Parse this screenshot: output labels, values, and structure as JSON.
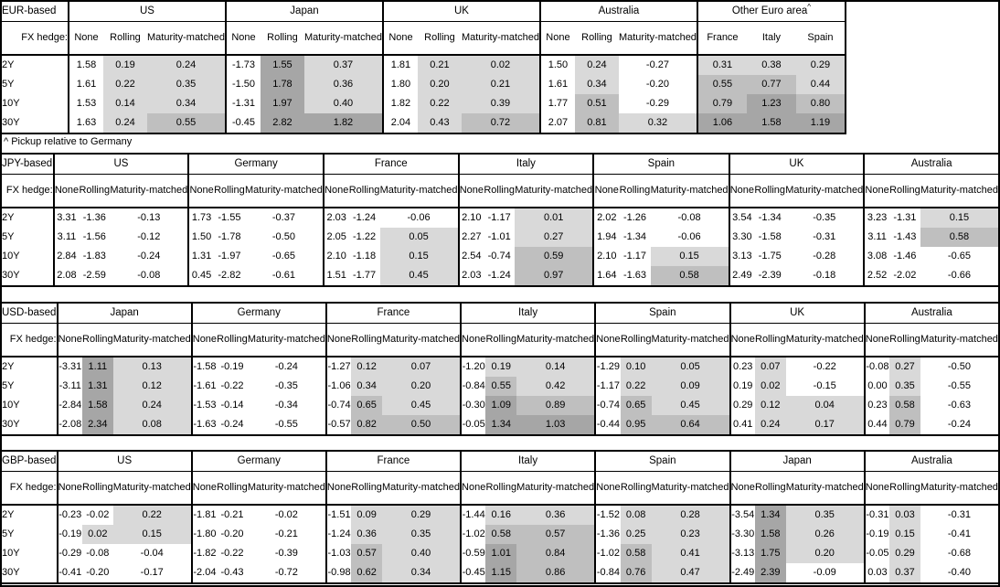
{
  "figure": {
    "footnote": "^ Pickup relative to Germany"
  },
  "columns": {
    "fx_hedge_label": "FX hedge:",
    "hedges": [
      "None",
      "Rolling",
      "Maturity-matched"
    ]
  },
  "tenors": [
    "2Y",
    "5Y",
    "10Y",
    "30Y"
  ],
  "colors": {
    "shade_light": "#d9d9d9",
    "shade_medium": "#bfbfbf",
    "shade_dark": "#a6a6a6",
    "border": "#000000",
    "background": "#ffffff"
  },
  "shading_rule": {
    "applies_to": "Rolling and Maturity-matched columns, and all Other-Euro-area spread columns",
    "white": "value < 0",
    "light": "0 <= value < 0.5",
    "medium": "0.5 <= value < 1.0",
    "dark": "value >= 1.0"
  },
  "tables": [
    {
      "base": "EUR-based",
      "groups": [
        {
          "country": "US",
          "rows": [
            [
              "1.58",
              "0.19",
              "0.24"
            ],
            [
              "1.61",
              "0.22",
              "0.35"
            ],
            [
              "1.53",
              "0.14",
              "0.34"
            ],
            [
              "1.63",
              "0.24",
              "0.55"
            ]
          ]
        },
        {
          "country": "Japan",
          "rows": [
            [
              "-1.73",
              "1.55",
              "0.37"
            ],
            [
              "-1.50",
              "1.78",
              "0.36"
            ],
            [
              "-1.31",
              "1.97",
              "0.40"
            ],
            [
              "-0.45",
              "2.82",
              "1.82"
            ]
          ]
        },
        {
          "country": "UK",
          "rows": [
            [
              "1.81",
              "0.21",
              "0.02"
            ],
            [
              "1.80",
              "0.20",
              "0.21"
            ],
            [
              "1.82",
              "0.22",
              "0.39"
            ],
            [
              "2.04",
              "0.43",
              "0.72"
            ]
          ]
        },
        {
          "country": "Australia",
          "rows": [
            [
              "1.50",
              "0.24",
              "-0.27"
            ],
            [
              "1.61",
              "0.34",
              "-0.20"
            ],
            [
              "1.77",
              "0.51",
              "-0.29"
            ],
            [
              "2.07",
              "0.81",
              "0.32"
            ]
          ]
        },
        {
          "country": "Other Euro area",
          "superscript": "^",
          "sub_columns": [
            "France",
            "Italy",
            "Spain"
          ],
          "rows": [
            [
              "0.31",
              "0.38",
              "0.29"
            ],
            [
              "0.55",
              "0.77",
              "0.44"
            ],
            [
              "0.79",
              "1.23",
              "0.80"
            ],
            [
              "1.06",
              "1.58",
              "1.19"
            ]
          ]
        }
      ]
    },
    {
      "base": "JPY-based",
      "groups": [
        {
          "country": "US",
          "rows": [
            [
              "3.31",
              "-1.36",
              "-0.13"
            ],
            [
              "3.11",
              "-1.56",
              "-0.12"
            ],
            [
              "2.84",
              "-1.83",
              "-0.24"
            ],
            [
              "2.08",
              "-2.59",
              "-0.08"
            ]
          ]
        },
        {
          "country": "Germany",
          "rows": [
            [
              "1.73",
              "-1.55",
              "-0.37"
            ],
            [
              "1.50",
              "-1.78",
              "-0.50"
            ],
            [
              "1.31",
              "-1.97",
              "-0.65"
            ],
            [
              "0.45",
              "-2.82",
              "-0.61"
            ]
          ]
        },
        {
          "country": "France",
          "rows": [
            [
              "2.03",
              "-1.24",
              "-0.06"
            ],
            [
              "2.05",
              "-1.22",
              "0.05"
            ],
            [
              "2.10",
              "-1.18",
              "0.15"
            ],
            [
              "1.51",
              "-1.77",
              "0.45"
            ]
          ]
        },
        {
          "country": "Italy",
          "rows": [
            [
              "2.10",
              "-1.17",
              "0.01"
            ],
            [
              "2.27",
              "-1.01",
              "0.27"
            ],
            [
              "2.54",
              "-0.74",
              "0.59"
            ],
            [
              "2.03",
              "-1.24",
              "0.97"
            ]
          ]
        },
        {
          "country": "Spain",
          "rows": [
            [
              "2.02",
              "-1.26",
              "-0.08"
            ],
            [
              "1.94",
              "-1.34",
              "-0.06"
            ],
            [
              "2.10",
              "-1.17",
              "0.15"
            ],
            [
              "1.64",
              "-1.63",
              "0.58"
            ]
          ]
        },
        {
          "country": "UK",
          "rows": [
            [
              "3.54",
              "-1.34",
              "-0.35"
            ],
            [
              "3.30",
              "-1.58",
              "-0.31"
            ],
            [
              "3.13",
              "-1.75",
              "-0.28"
            ],
            [
              "2.49",
              "-2.39",
              "-0.18"
            ]
          ]
        },
        {
          "country": "Australia",
          "rows": [
            [
              "3.23",
              "-1.31",
              "0.15"
            ],
            [
              "3.11",
              "-1.43",
              "0.58"
            ],
            [
              "3.08",
              "-1.46",
              "-0.65"
            ],
            [
              "2.52",
              "-2.02",
              "-0.66"
            ]
          ]
        }
      ]
    },
    {
      "base": "USD-based",
      "groups": [
        {
          "country": "Japan",
          "rows": [
            [
              "-3.31",
              "1.11",
              "0.13"
            ],
            [
              "-3.11",
              "1.31",
              "0.12"
            ],
            [
              "-2.84",
              "1.58",
              "0.24"
            ],
            [
              "-2.08",
              "2.34",
              "0.08"
            ]
          ]
        },
        {
          "country": "Germany",
          "rows": [
            [
              "-1.58",
              "-0.19",
              "-0.24"
            ],
            [
              "-1.61",
              "-0.22",
              "-0.35"
            ],
            [
              "-1.53",
              "-0.14",
              "-0.34"
            ],
            [
              "-1.63",
              "-0.24",
              "-0.55"
            ]
          ]
        },
        {
          "country": "France",
          "rows": [
            [
              "-1.27",
              "0.12",
              "0.07"
            ],
            [
              "-1.06",
              "0.34",
              "0.20"
            ],
            [
              "-0.74",
              "0.65",
              "0.45"
            ],
            [
              "-0.57",
              "0.82",
              "0.50"
            ]
          ]
        },
        {
          "country": "Italy",
          "rows": [
            [
              "-1.20",
              "0.19",
              "0.14"
            ],
            [
              "-0.84",
              "0.55",
              "0.42"
            ],
            [
              "-0.30",
              "1.09",
              "0.89"
            ],
            [
              "-0.05",
              "1.34",
              "1.03"
            ]
          ]
        },
        {
          "country": "Spain",
          "rows": [
            [
              "-1.29",
              "0.10",
              "0.05"
            ],
            [
              "-1.17",
              "0.22",
              "0.09"
            ],
            [
              "-0.74",
              "0.65",
              "0.45"
            ],
            [
              "-0.44",
              "0.95",
              "0.64"
            ]
          ]
        },
        {
          "country": "UK",
          "rows": [
            [
              "0.23",
              "0.07",
              "-0.22"
            ],
            [
              "0.19",
              "0.02",
              "-0.15"
            ],
            [
              "0.29",
              "0.12",
              "0.04"
            ],
            [
              "0.41",
              "0.24",
              "0.17"
            ]
          ]
        },
        {
          "country": "Australia",
          "rows": [
            [
              "-0.08",
              "0.27",
              "-0.50"
            ],
            [
              "0.00",
              "0.35",
              "-0.55"
            ],
            [
              "0.23",
              "0.58",
              "-0.63"
            ],
            [
              "0.44",
              "0.79",
              "-0.24"
            ]
          ]
        }
      ]
    },
    {
      "base": "GBP-based",
      "groups": [
        {
          "country": "US",
          "rows": [
            [
              "-0.23",
              "-0.02",
              "0.22"
            ],
            [
              "-0.19",
              "0.02",
              "0.15"
            ],
            [
              "-0.29",
              "-0.08",
              "-0.04"
            ],
            [
              "-0.41",
              "-0.20",
              "-0.17"
            ]
          ]
        },
        {
          "country": "Germany",
          "rows": [
            [
              "-1.81",
              "-0.21",
              "-0.02"
            ],
            [
              "-1.80",
              "-0.20",
              "-0.21"
            ],
            [
              "-1.82",
              "-0.22",
              "-0.39"
            ],
            [
              "-2.04",
              "-0.43",
              "-0.72"
            ]
          ]
        },
        {
          "country": "France",
          "rows": [
            [
              "-1.51",
              "0.09",
              "0.29"
            ],
            [
              "-1.24",
              "0.36",
              "0.35"
            ],
            [
              "-1.03",
              "0.57",
              "0.40"
            ],
            [
              "-0.98",
              "0.62",
              "0.34"
            ]
          ]
        },
        {
          "country": "Italy",
          "rows": [
            [
              "-1.44",
              "0.16",
              "0.36"
            ],
            [
              "-1.02",
              "0.58",
              "0.57"
            ],
            [
              "-0.59",
              "1.01",
              "0.84"
            ],
            [
              "-0.45",
              "1.15",
              "0.86"
            ]
          ]
        },
        {
          "country": "Spain",
          "rows": [
            [
              "-1.52",
              "0.08",
              "0.28"
            ],
            [
              "-1.36",
              "0.25",
              "0.23"
            ],
            [
              "-1.02",
              "0.58",
              "0.41"
            ],
            [
              "-0.84",
              "0.76",
              "0.47"
            ]
          ]
        },
        {
          "country": "Japan",
          "rows": [
            [
              "-3.54",
              "1.34",
              "0.35"
            ],
            [
              "-3.30",
              "1.58",
              "0.26"
            ],
            [
              "-3.13",
              "1.75",
              "0.20"
            ],
            [
              "-2.49",
              "2.39",
              "-0.09"
            ]
          ]
        },
        {
          "country": "Australia",
          "rows": [
            [
              "-0.31",
              "0.03",
              "-0.31"
            ],
            [
              "-0.19",
              "0.15",
              "-0.41"
            ],
            [
              "-0.05",
              "0.29",
              "-0.68"
            ],
            [
              "0.03",
              "0.37",
              "-0.40"
            ]
          ]
        }
      ]
    }
  ]
}
